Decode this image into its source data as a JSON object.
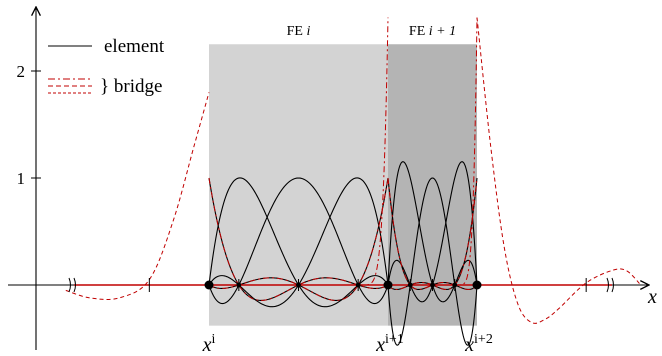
{
  "chart_data": {
    "type": "line",
    "title": "",
    "xlabel": "x",
    "ylabel": "",
    "xlim": [
      -0.35,
      1.55
    ],
    "ylim": [
      -0.42,
      2.5
    ],
    "yticks": [
      {
        "value": 1,
        "label": "1"
      },
      {
        "value": 2,
        "label": "2"
      }
    ],
    "x_ticks_extra": [
      -0.2,
      1.3
    ],
    "axis_breaks": [
      -0.25,
      1.45
    ],
    "legend": {
      "placement": "top-left",
      "element_label": "element",
      "bridge_label": "} bridge"
    },
    "regions": [
      {
        "name": "FE i",
        "label_main": "FE ",
        "label_var": "i",
        "x_start": 0.0,
        "x_end": 0.6,
        "y_top": 2.25,
        "y_bottom": -0.38,
        "fill": "#d3d3d3"
      },
      {
        "name": "FE i+1",
        "label_main": "FE ",
        "label_var": "i + 1",
        "x_start": 0.6,
        "x_end": 0.9,
        "y_top": 2.25,
        "y_bottom": -0.38,
        "fill": "#b4b4b4"
      }
    ],
    "nodes": [
      {
        "x": 0.0,
        "label": "x",
        "sup": "i"
      },
      {
        "x": 0.6,
        "label": "x",
        "sup": "i+1"
      },
      {
        "x": 0.9,
        "label": "x",
        "sup": "i+2"
      }
    ],
    "interior_nodes": [
      0.1,
      0.3,
      0.5,
      0.675,
      0.75,
      0.825
    ],
    "element_series": [
      {
        "name": "FE i basis",
        "x_start": 0.0,
        "x_end": 0.6,
        "nodes": [
          0.0,
          0.1,
          0.3,
          0.5,
          0.6
        ]
      },
      {
        "name": "FE i+1 basis",
        "x_start": 0.6,
        "x_end": 0.9,
        "nodes": [
          0.6,
          0.675,
          0.75,
          0.825,
          0.9
        ]
      }
    ],
    "bridge_series": [
      {
        "name": "left bridge",
        "style": "dashed",
        "color": "#c00000",
        "x": [
          -0.48,
          -0.4,
          -0.3,
          -0.2,
          -0.12,
          -0.05,
          0.0
        ],
        "y": [
          -0.05,
          -0.12,
          -0.12,
          0.05,
          0.6,
          1.3,
          1.8
        ]
      },
      {
        "name": "right bridge",
        "style": "dashed",
        "color": "#c00000",
        "x": [
          0.9,
          0.95,
          1.0,
          1.05,
          1.1,
          1.15,
          1.2,
          1.3,
          1.4,
          1.45,
          1.5
        ],
        "y": [
          2.5,
          1.3,
          0.35,
          -0.18,
          -0.35,
          -0.32,
          -0.22,
          0.02,
          0.14,
          0.13,
          0.0
        ]
      }
    ],
    "colors": {
      "element": "#000000",
      "bridge": "#c00000",
      "fe_i": "#d3d3d3",
      "fe_i1": "#b4b4b4"
    }
  }
}
